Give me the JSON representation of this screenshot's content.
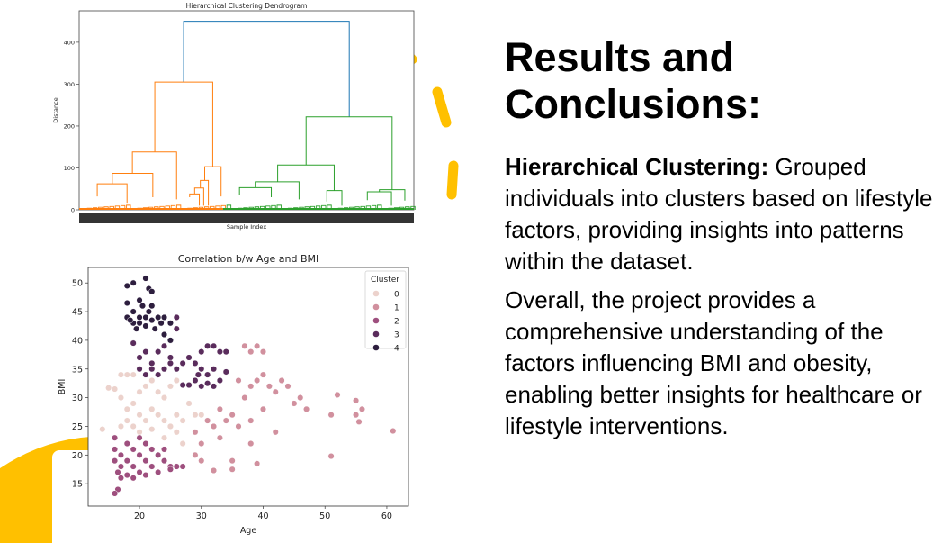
{
  "slide": {
    "title": "Results and Conclusions:",
    "paragraph1_bold": "Hierarchical Clustering:",
    "paragraph1_rest": " Grouped individuals into clusters based on lifestyle factors, providing insights into patterns within the dataset.",
    "paragraph2": "Overall, the project provides a comprehensive understanding of the factors influencing BMI and obesity, enabling better insights for healthcare or lifestyle interventions.",
    "accent_color": "#FFC000"
  },
  "chart_data": [
    {
      "type": "dendrogram",
      "title": "Hierarchical Clustering Dendrogram",
      "xlabel": "Sample Index",
      "ylabel": "Distance",
      "ylim": [
        0,
        475
      ],
      "yticks": [
        0,
        100,
        200,
        300,
        400
      ],
      "colors": {
        "root": "#1f77b4",
        "cluster_a": "#ff7f0e",
        "cluster_b": "#2ca02c"
      },
      "links": [
        {
          "x": [
            31.2,
            80.7
          ],
          "h": [
            305,
            222
          ],
          "top": 450,
          "color": "root"
        },
        {
          "x": [
            22.6,
            39.9
          ],
          "h": [
            138,
            103
          ],
          "top": 305,
          "color": "cluster_a"
        },
        {
          "x": [
            15.9,
            29.1
          ],
          "h": [
            87,
            25
          ],
          "top": 138,
          "color": "cluster_a"
        },
        {
          "x": [
            9.9,
            22.0
          ],
          "h": [
            62,
            30
          ],
          "top": 87,
          "color": "cluster_a"
        },
        {
          "x": [
            5.4,
            14.3
          ],
          "h": [
            32,
            17
          ],
          "top": 62,
          "color": "cluster_a"
        },
        {
          "x": [
            37.5,
            42.4
          ],
          "h": [
            70,
            32
          ],
          "top": 103,
          "color": "cluster_a"
        },
        {
          "x": [
            36.2,
            38.6
          ],
          "h": [
            52,
            10
          ],
          "top": 70,
          "color": "cluster_a"
        },
        {
          "x": [
            34.5,
            37.2
          ],
          "h": [
            38,
            10
          ],
          "top": 52,
          "color": "cluster_a"
        },
        {
          "x": [
            33.0,
            35.9
          ],
          "h": [
            30,
            10
          ],
          "top": 38,
          "color": "cluster_a"
        },
        {
          "x": [
            67.8,
            93.5
          ],
          "h": [
            107,
            48
          ],
          "top": 222,
          "color": "cluster_b"
        },
        {
          "x": [
            59.3,
            76.2
          ],
          "h": [
            67,
            46
          ],
          "top": 107,
          "color": "cluster_b"
        },
        {
          "x": [
            52.6,
            65.7
          ],
          "h": [
            53,
            25
          ],
          "top": 67,
          "color": "cluster_b"
        },
        {
          "x": [
            47.9,
            57.4
          ],
          "h": [
            35,
            30
          ],
          "top": 53,
          "color": "cluster_b"
        },
        {
          "x": [
            89.7,
            97.3
          ],
          "h": [
            43,
            22
          ],
          "top": 48,
          "color": "cluster_b"
        },
        {
          "x": [
            86.1,
            93.3
          ],
          "h": [
            23,
            10
          ],
          "top": 43,
          "color": "cluster_b"
        },
        {
          "x": [
            74.0,
            78.5
          ],
          "h": [
            20,
            10
          ],
          "top": 46,
          "color": "cluster_b"
        }
      ]
    },
    {
      "type": "scatter",
      "title": "Correlation b/w Age and BMI",
      "xlabel": "Age",
      "ylabel": "BMI",
      "xlim": [
        11.7,
        63.5
      ],
      "ylim": [
        11.1,
        52.7
      ],
      "xticks": [
        20,
        30,
        40,
        50,
        60
      ],
      "yticks": [
        15,
        20,
        25,
        30,
        35,
        40,
        45,
        50
      ],
      "legend": {
        "title": "Cluster",
        "position": "top-right"
      },
      "series": [
        {
          "name": "0",
          "color": "#ecd2cc",
          "points": [
            [
              14,
              24.5
            ],
            [
              15,
              31.7
            ],
            [
              16,
              31.5
            ],
            [
              17,
              34
            ],
            [
              18,
              34
            ],
            [
              19,
              34
            ],
            [
              17,
              30
            ],
            [
              18,
              28
            ],
            [
              19,
              29
            ],
            [
              20,
              31
            ],
            [
              21,
              32
            ],
            [
              22,
              33
            ],
            [
              23,
              31
            ],
            [
              24,
              30
            ],
            [
              25,
              32
            ],
            [
              26,
              33
            ],
            [
              17,
              25
            ],
            [
              18,
              26
            ],
            [
              19,
              25
            ],
            [
              20,
              27
            ],
            [
              21,
              26
            ],
            [
              22,
              28
            ],
            [
              23,
              27
            ],
            [
              24,
              26
            ],
            [
              25,
              25
            ],
            [
              26,
              27
            ],
            [
              27,
              26
            ],
            [
              28,
              29
            ],
            [
              29,
              27
            ],
            [
              30,
              27
            ],
            [
              27,
              22
            ],
            [
              26,
              24
            ],
            [
              24,
              23
            ],
            [
              22,
              24.5
            ],
            [
              20,
              24
            ]
          ]
        },
        {
          "name": "1",
          "color": "#d1909e",
          "points": [
            [
              29,
              24
            ],
            [
              30,
              22
            ],
            [
              31,
              26
            ],
            [
              32,
              25
            ],
            [
              33,
              28
            ],
            [
              34,
              26
            ],
            [
              35,
              27
            ],
            [
              36,
              33
            ],
            [
              37,
              39
            ],
            [
              38,
              38
            ],
            [
              39,
              39
            ],
            [
              40,
              38
            ],
            [
              37,
              30
            ],
            [
              38,
              32
            ],
            [
              39,
              33
            ],
            [
              40,
              34
            ],
            [
              41,
              32
            ],
            [
              42,
              31
            ],
            [
              43,
              33
            ],
            [
              44,
              32
            ],
            [
              45,
              29
            ],
            [
              46,
              30
            ],
            [
              47,
              28
            ],
            [
              40,
              28
            ],
            [
              38,
              26
            ],
            [
              36,
              25
            ],
            [
              33,
              23
            ],
            [
              32,
              17.3
            ],
            [
              35,
              17.5
            ],
            [
              39,
              18.5
            ],
            [
              35,
              19
            ],
            [
              30,
              19
            ],
            [
              42,
              24
            ],
            [
              52,
              30.5
            ],
            [
              51,
              27
            ],
            [
              55,
              29.5
            ],
            [
              55,
              27
            ],
            [
              56,
              28
            ],
            [
              61,
              24.2
            ],
            [
              51,
              19.8
            ],
            [
              55.5,
              25.8
            ],
            [
              38,
              22
            ],
            [
              29,
              20
            ]
          ]
        },
        {
          "name": "2",
          "color": "#9e4f7e",
          "points": [
            [
              16,
              23
            ],
            [
              16,
              21
            ],
            [
              16,
              19
            ],
            [
              16.5,
              17
            ],
            [
              16.5,
              14
            ],
            [
              16,
              13.3
            ],
            [
              17,
              20
            ],
            [
              17,
              18
            ],
            [
              17,
              16
            ],
            [
              18,
              22
            ],
            [
              18,
              19
            ],
            [
              18,
              16.5
            ],
            [
              19,
              21
            ],
            [
              19,
              18
            ],
            [
              19,
              16
            ],
            [
              20,
              23
            ],
            [
              20,
              20
            ],
            [
              20,
              17
            ],
            [
              21,
              22
            ],
            [
              21,
              19
            ],
            [
              21,
              16.5
            ],
            [
              22,
              21
            ],
            [
              22,
              18
            ],
            [
              23,
              20
            ],
            [
              23,
              17
            ],
            [
              24,
              19
            ],
            [
              24,
              21
            ],
            [
              25,
              18
            ],
            [
              25,
              17.5
            ],
            [
              26,
              18
            ],
            [
              27,
              18
            ]
          ]
        },
        {
          "name": "3",
          "color": "#5a2c5c",
          "points": [
            [
              19,
              39.5
            ],
            [
              20,
              37
            ],
            [
              21,
              38
            ],
            [
              22,
              36
            ],
            [
              23,
              38
            ],
            [
              24,
              39
            ],
            [
              25,
              40
            ],
            [
              26,
              44
            ],
            [
              26,
              42
            ],
            [
              25,
              37
            ],
            [
              24,
              35
            ],
            [
              26,
              35
            ],
            [
              27,
              36
            ],
            [
              28,
              37
            ],
            [
              29,
              36
            ],
            [
              30,
              38
            ],
            [
              31,
              39
            ],
            [
              32,
              39
            ],
            [
              33,
              38
            ],
            [
              34,
              38
            ],
            [
              30,
              35
            ],
            [
              31,
              34
            ],
            [
              32,
              35
            ],
            [
              33,
              33
            ],
            [
              34,
              34.5
            ],
            [
              29,
              33
            ],
            [
              30,
              32
            ],
            [
              31,
              32.5
            ],
            [
              32,
              32
            ],
            [
              27,
              32.2
            ],
            [
              28,
              32.2
            ],
            [
              20,
              35
            ],
            [
              22,
              35
            ],
            [
              23,
              34
            ],
            [
              25,
              36
            ],
            [
              21,
              34
            ],
            [
              29.5,
              34
            ]
          ]
        },
        {
          "name": "4",
          "color": "#2d1e3e",
          "points": [
            [
              18,
              49.5
            ],
            [
              19,
              50
            ],
            [
              21,
              50.8
            ],
            [
              21.5,
              49
            ],
            [
              22,
              48.5
            ],
            [
              20,
              47
            ],
            [
              18,
              46.5
            ],
            [
              19,
              45
            ],
            [
              20.5,
              46
            ],
            [
              21.5,
              45
            ],
            [
              18,
              44
            ],
            [
              19,
              43
            ],
            [
              20,
              44
            ],
            [
              21,
              44
            ],
            [
              22,
              43.5
            ],
            [
              23,
              44
            ],
            [
              23.5,
              43
            ],
            [
              24,
              44
            ],
            [
              25,
              43
            ],
            [
              19.5,
              42
            ],
            [
              21,
              42.5
            ],
            [
              22.5,
              42
            ],
            [
              24,
              41
            ],
            [
              25,
              40
            ],
            [
              18.5,
              43.5
            ],
            [
              20,
              43
            ],
            [
              22,
              46
            ]
          ]
        }
      ]
    }
  ]
}
